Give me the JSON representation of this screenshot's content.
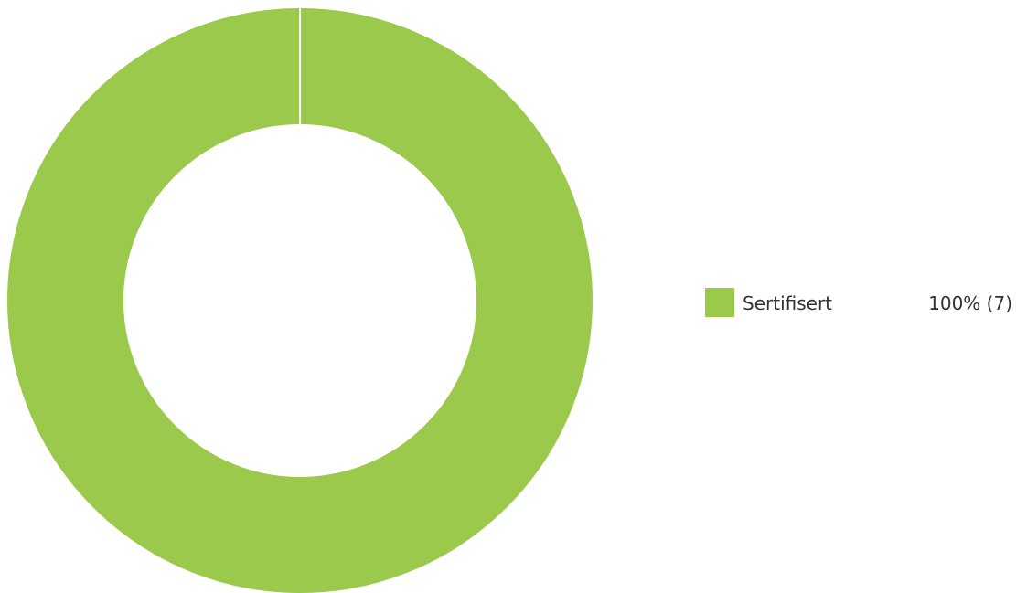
{
  "chart_data": {
    "type": "pie",
    "donut": true,
    "title": "",
    "legend_position": "right",
    "slices": [
      {
        "label": "Sertifisert",
        "value": 7,
        "percent_label": "100% (7)",
        "color": "#9bc94b"
      }
    ]
  }
}
